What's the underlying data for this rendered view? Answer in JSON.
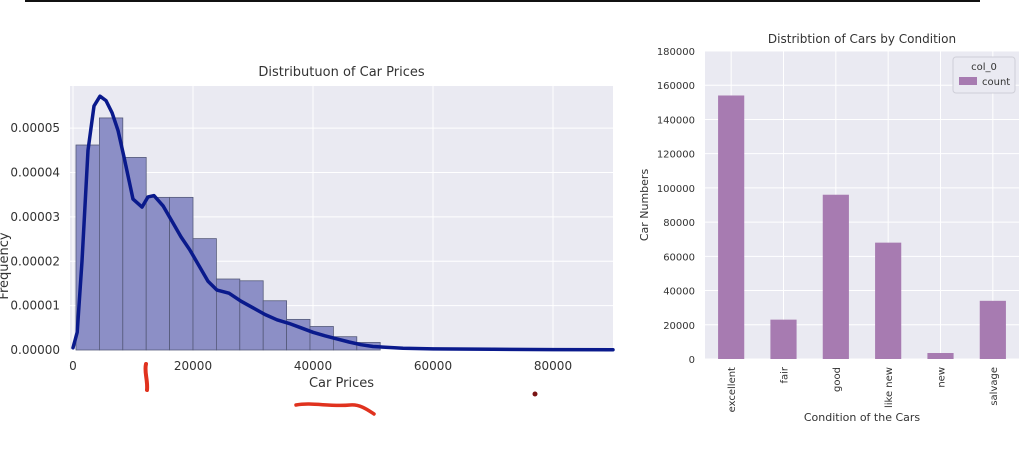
{
  "chart_data": [
    {
      "type": "bar",
      "subtype": "histogram-with-density",
      "title": "Distributuon of Car Prices",
      "xlabel": "Car Prices",
      "ylabel": "Frequency",
      "xlim": [
        -500,
        90000
      ],
      "ylim": [
        0,
        5.95e-05
      ],
      "x_ticks": [
        0,
        20000,
        40000,
        60000,
        80000
      ],
      "x_tick_labels": [
        "0",
        "20000",
        "40000",
        "60000",
        "80000"
      ],
      "y_ticks": [
        0,
        1e-05,
        2e-05,
        3e-05,
        4e-05,
        5e-05
      ],
      "y_tick_labels": [
        "0.00000",
        "0.00001",
        "0.00002",
        "0.00003",
        "0.00004",
        "0.00005"
      ],
      "grid": true,
      "bar_color": "#8c8fc6",
      "line_color": "#0a1a8c",
      "bins": [
        {
          "x0": 500,
          "x1": 4400,
          "value": 4.62e-05
        },
        {
          "x0": 4400,
          "x1": 8300,
          "value": 5.23e-05
        },
        {
          "x0": 8300,
          "x1": 12200,
          "value": 4.34e-05
        },
        {
          "x0": 12200,
          "x1": 16100,
          "value": 3.44e-05
        },
        {
          "x0": 16100,
          "x1": 20000,
          "value": 3.44e-05
        },
        {
          "x0": 20000,
          "x1": 23900,
          "value": 2.51e-05
        },
        {
          "x0": 23900,
          "x1": 27800,
          "value": 1.6e-05
        },
        {
          "x0": 27800,
          "x1": 31700,
          "value": 1.56e-05
        },
        {
          "x0": 31700,
          "x1": 35600,
          "value": 1.11e-05
        },
        {
          "x0": 35600,
          "x1": 39500,
          "value": 6.9e-06
        },
        {
          "x0": 39500,
          "x1": 43400,
          "value": 5.3e-06
        },
        {
          "x0": 43400,
          "x1": 47300,
          "value": 3e-06
        },
        {
          "x0": 47300,
          "x1": 51200,
          "value": 1.7e-06
        }
      ],
      "density": {
        "x": [
          0,
          700,
          1500,
          2500,
          3500,
          4500,
          5500,
          6500,
          7500,
          8500,
          10000,
          11500,
          12500,
          13500,
          15000,
          16500,
          18000,
          19500,
          21000,
          22500,
          24000,
          26000,
          28000,
          30000,
          32000,
          34000,
          36000,
          38000,
          40000,
          42000,
          44000,
          46000,
          48000,
          50000,
          55000,
          60000,
          70000,
          80000,
          90000
        ],
        "y": [
          5e-07,
          4e-06,
          2e-05,
          4.5e-05,
          5.5e-05,
          5.72e-05,
          5.62e-05,
          5.35e-05,
          4.95e-05,
          4.35e-05,
          3.4e-05,
          3.22e-05,
          3.45e-05,
          3.48e-05,
          3.25e-05,
          2.9e-05,
          2.55e-05,
          2.25e-05,
          1.9e-05,
          1.55e-05,
          1.35e-05,
          1.28e-05,
          1.1e-05,
          9.5e-06,
          8e-06,
          6.8e-06,
          6e-06,
          5e-06,
          4e-06,
          3.2e-06,
          2.5e-06,
          1.8e-06,
          1.2e-06,
          8e-07,
          4e-07,
          2.5e-07,
          1.5e-07,
          1e-07,
          5e-08
        ]
      }
    },
    {
      "type": "bar",
      "title": "Distribtion of Cars by Condition",
      "xlabel": "Condition of the Cars",
      "ylabel": "Car Numbers",
      "categories": [
        "excellent",
        "fair",
        "good",
        "like new",
        "new",
        "salvage"
      ],
      "series": [
        {
          "name": "count",
          "values": [
            154000,
            23000,
            96000,
            68000,
            3500,
            34000
          ]
        }
      ],
      "ylim": [
        0,
        180000
      ],
      "y_ticks": [
        0,
        20000,
        40000,
        60000,
        80000,
        100000,
        120000,
        140000,
        160000,
        180000
      ],
      "legend": {
        "title": "col_0",
        "label": "count",
        "position": "top-right"
      },
      "grid": true,
      "bar_color": "#a77bb1"
    }
  ]
}
